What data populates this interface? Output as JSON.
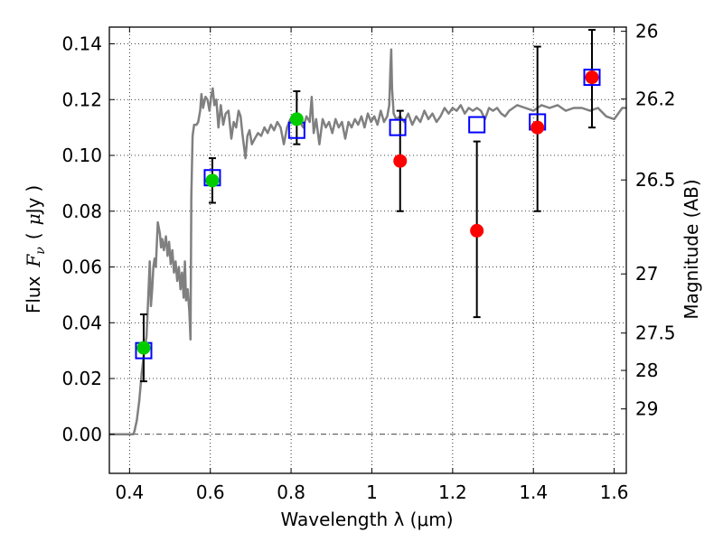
{
  "chart_data": {
    "type": "scatter",
    "title": "",
    "xlabel": "Wavelength  λ (μm)",
    "ylabel_prefix": "Flux",
    "ylabel_symbol": "F",
    "ylabel_subscript": "ν",
    "ylabel_unit_open": "(",
    "ylabel_unit_mu": "μ",
    "ylabel_unit_text": "Jy",
    "ylabel_unit_close": ")",
    "y2label": "Magnitude (AB)",
    "xlim": [
      0.35,
      1.63
    ],
    "ylim": [
      -0.014,
      0.146
    ],
    "grid": true,
    "x_ticks": [
      {
        "value": 0.4,
        "label": "0.4"
      },
      {
        "value": 0.6,
        "label": "0.6"
      },
      {
        "value": 0.8,
        "label": "0.8"
      },
      {
        "value": 1.0,
        "label": "1"
      },
      {
        "value": 1.2,
        "label": "1.2"
      },
      {
        "value": 1.4,
        "label": "1.4"
      },
      {
        "value": 1.6,
        "label": "1.6"
      }
    ],
    "y_ticks": [
      {
        "value": 0.0,
        "label": "0.00"
      },
      {
        "value": 0.02,
        "label": "0.02"
      },
      {
        "value": 0.04,
        "label": "0.04"
      },
      {
        "value": 0.06,
        "label": "0.06"
      },
      {
        "value": 0.08,
        "label": "0.08"
      },
      {
        "value": 0.1,
        "label": "0.10"
      },
      {
        "value": 0.12,
        "label": "0.12"
      },
      {
        "value": 0.14,
        "label": "0.14"
      }
    ],
    "y2_ticks": [
      {
        "label": "26",
        "flux": 0.1445
      },
      {
        "label": "26.2",
        "flux": 0.1202
      },
      {
        "label": "26.5",
        "flux": 0.0912
      },
      {
        "label": "27",
        "flux": 0.0575
      },
      {
        "label": "27.5",
        "flux": 0.0363
      },
      {
        "label": "28",
        "flux": 0.0229
      },
      {
        "label": "29",
        "flux": 0.0091
      }
    ],
    "model_spectrum": {
      "color": "#808080",
      "points": [
        [
          0.35,
          0.0
        ],
        [
          0.409,
          0.0
        ],
        [
          0.412,
          0.001
        ],
        [
          0.418,
          0.005
        ],
        [
          0.424,
          0.012
        ],
        [
          0.43,
          0.022
        ],
        [
          0.436,
          0.029
        ],
        [
          0.442,
          0.035
        ],
        [
          0.446,
          0.048
        ],
        [
          0.45,
          0.062
        ],
        [
          0.453,
          0.046
        ],
        [
          0.456,
          0.052
        ],
        [
          0.459,
          0.06
        ],
        [
          0.462,
          0.063
        ],
        [
          0.465,
          0.06
        ],
        [
          0.47,
          0.076
        ],
        [
          0.475,
          0.072
        ],
        [
          0.478,
          0.067
        ],
        [
          0.481,
          0.07
        ],
        [
          0.485,
          0.066
        ],
        [
          0.49,
          0.071
        ],
        [
          0.494,
          0.064
        ],
        [
          0.498,
          0.069
        ],
        [
          0.502,
          0.061
        ],
        [
          0.506,
          0.066
        ],
        [
          0.51,
          0.058
        ],
        [
          0.514,
          0.062
        ],
        [
          0.518,
          0.055
        ],
        [
          0.522,
          0.06
        ],
        [
          0.526,
          0.052
        ],
        [
          0.53,
          0.058
        ],
        [
          0.534,
          0.049
        ],
        [
          0.537,
          0.062
        ],
        [
          0.54,
          0.048
        ],
        [
          0.544,
          0.052
        ],
        [
          0.548,
          0.044
        ],
        [
          0.551,
          0.034
        ],
        [
          0.553,
          0.085
        ],
        [
          0.556,
          0.107
        ],
        [
          0.56,
          0.111
        ],
        [
          0.566,
          0.111
        ],
        [
          0.57,
          0.112
        ],
        [
          0.575,
          0.116
        ],
        [
          0.578,
          0.122
        ],
        [
          0.582,
          0.117
        ],
        [
          0.588,
          0.121
        ],
        [
          0.593,
          0.12
        ],
        [
          0.598,
          0.116
        ],
        [
          0.602,
          0.121
        ],
        [
          0.606,
          0.124
        ],
        [
          0.61,
          0.118
        ],
        [
          0.615,
          0.12
        ],
        [
          0.62,
          0.11
        ],
        [
          0.626,
          0.118
        ],
        [
          0.632,
          0.111
        ],
        [
          0.638,
          0.115
        ],
        [
          0.645,
          0.116
        ],
        [
          0.652,
          0.106
        ],
        [
          0.658,
          0.112
        ],
        [
          0.664,
          0.11
        ],
        [
          0.67,
          0.116
        ],
        [
          0.675,
          0.114
        ],
        [
          0.68,
          0.107
        ],
        [
          0.687,
          0.099
        ],
        [
          0.692,
          0.107
        ],
        [
          0.697,
          0.109
        ],
        [
          0.703,
          0.104
        ],
        [
          0.71,
          0.106
        ],
        [
          0.718,
          0.108
        ],
        [
          0.726,
          0.107
        ],
        [
          0.734,
          0.11
        ],
        [
          0.742,
          0.108
        ],
        [
          0.75,
          0.111
        ],
        [
          0.758,
          0.109
        ],
        [
          0.766,
          0.112
        ],
        [
          0.774,
          0.11
        ],
        [
          0.782,
          0.104
        ],
        [
          0.79,
          0.11
        ],
        [
          0.798,
          0.113
        ],
        [
          0.806,
          0.112
        ],
        [
          0.814,
          0.114
        ],
        [
          0.822,
          0.112
        ],
        [
          0.83,
          0.11
        ],
        [
          0.838,
          0.114
        ],
        [
          0.846,
          0.112
        ],
        [
          0.851,
          0.121
        ],
        [
          0.856,
          0.108
        ],
        [
          0.862,
          0.113
        ],
        [
          0.87,
          0.104
        ],
        [
          0.878,
          0.113
        ],
        [
          0.886,
          0.11
        ],
        [
          0.894,
          0.112
        ],
        [
          0.902,
          0.108
        ],
        [
          0.91,
          0.113
        ],
        [
          0.918,
          0.11
        ],
        [
          0.926,
          0.112
        ],
        [
          0.934,
          0.106
        ],
        [
          0.942,
          0.112
        ],
        [
          0.95,
          0.11
        ],
        [
          0.958,
          0.113
        ],
        [
          0.966,
          0.111
        ],
        [
          0.974,
          0.114
        ],
        [
          0.982,
          0.11
        ],
        [
          0.99,
          0.115
        ],
        [
          0.998,
          0.112
        ],
        [
          1.006,
          0.114
        ],
        [
          1.014,
          0.111
        ],
        [
          1.022,
          0.116
        ],
        [
          1.03,
          0.112
        ],
        [
          1.038,
          0.114
        ],
        [
          1.043,
          0.118
        ],
        [
          1.046,
          0.131
        ],
        [
          1.048,
          0.138
        ],
        [
          1.05,
          0.124
        ],
        [
          1.054,
          0.115
        ],
        [
          1.06,
          0.113
        ],
        [
          1.07,
          0.114
        ],
        [
          1.08,
          0.112
        ],
        [
          1.09,
          0.115
        ],
        [
          1.1,
          0.111
        ],
        [
          1.11,
          0.114
        ],
        [
          1.12,
          0.112
        ],
        [
          1.13,
          0.116
        ],
        [
          1.14,
          0.113
        ],
        [
          1.15,
          0.115
        ],
        [
          1.16,
          0.112
        ],
        [
          1.17,
          0.114
        ],
        [
          1.18,
          0.117
        ],
        [
          1.19,
          0.115
        ],
        [
          1.2,
          0.117
        ],
        [
          1.21,
          0.116
        ],
        [
          1.22,
          0.118
        ],
        [
          1.23,
          0.115
        ],
        [
          1.24,
          0.117
        ],
        [
          1.25,
          0.116
        ],
        [
          1.26,
          0.117
        ],
        [
          1.27,
          0.116
        ],
        [
          1.28,
          0.113
        ],
        [
          1.29,
          0.117
        ],
        [
          1.3,
          0.116
        ],
        [
          1.31,
          0.117
        ],
        [
          1.32,
          0.115
        ],
        [
          1.33,
          0.114
        ],
        [
          1.34,
          0.116
        ],
        [
          1.35,
          0.117
        ],
        [
          1.36,
          0.118
        ],
        [
          1.38,
          0.117
        ],
        [
          1.4,
          0.116
        ],
        [
          1.42,
          0.118
        ],
        [
          1.44,
          0.117
        ],
        [
          1.46,
          0.118
        ],
        [
          1.48,
          0.116
        ],
        [
          1.5,
          0.117
        ],
        [
          1.52,
          0.117
        ],
        [
          1.54,
          0.116
        ],
        [
          1.56,
          0.117
        ],
        [
          1.58,
          0.114
        ],
        [
          1.6,
          0.113
        ],
        [
          1.61,
          0.115
        ],
        [
          1.62,
          0.117
        ],
        [
          1.63,
          0.117
        ]
      ]
    },
    "model_points": {
      "marker": "open-square",
      "color": "#0000ff",
      "points": [
        [
          0.435,
          0.03
        ],
        [
          0.605,
          0.092
        ],
        [
          0.814,
          0.109
        ],
        [
          1.064,
          0.11
        ],
        [
          1.26,
          0.111
        ],
        [
          1.41,
          0.112
        ],
        [
          1.545,
          0.128
        ]
      ]
    },
    "observations": [
      {
        "x": 0.435,
        "y": 0.031,
        "err_low": 0.019,
        "err_high": 0.043,
        "color": "#00cc00"
      },
      {
        "x": 0.605,
        "y": 0.091,
        "err_low": 0.083,
        "err_high": 0.099,
        "color": "#00cc00"
      },
      {
        "x": 0.814,
        "y": 0.113,
        "err_low": 0.104,
        "err_high": 0.123,
        "color": "#00cc00"
      },
      {
        "x": 1.07,
        "y": 0.098,
        "err_low": 0.08,
        "err_high": 0.116,
        "color": "#ff0000"
      },
      {
        "x": 1.26,
        "y": 0.073,
        "err_low": 0.042,
        "err_high": 0.105,
        "color": "#ff0000"
      },
      {
        "x": 1.41,
        "y": 0.11,
        "err_low": 0.08,
        "err_high": 0.139,
        "color": "#ff0000"
      },
      {
        "x": 1.545,
        "y": 0.128,
        "err_low": 0.11,
        "err_high": 0.145,
        "color": "#ff0000"
      }
    ]
  }
}
